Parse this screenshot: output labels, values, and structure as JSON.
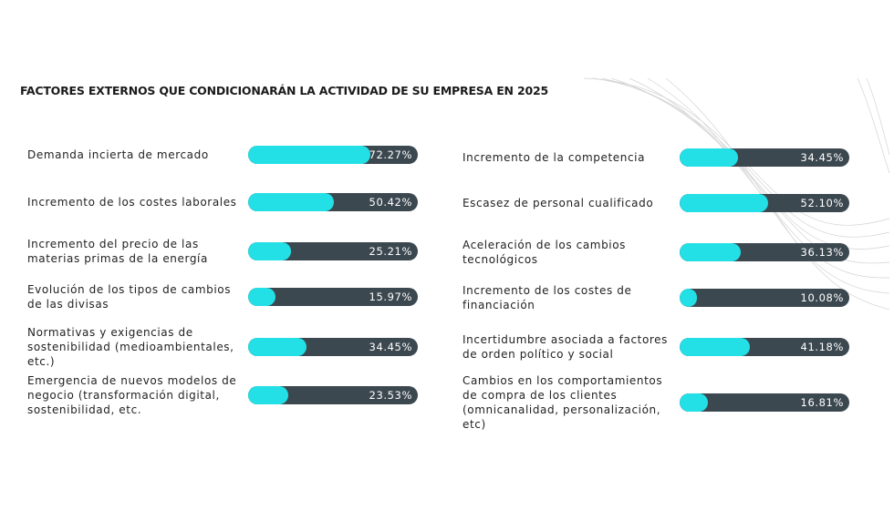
{
  "chart_data": [
    {
      "type": "bar",
      "orientation": "horizontal",
      "title": "FACTORES EXTERNOS QUE CONDICIONARÁN LA ACTIVIDAD DE SU EMPRESA EN 2025",
      "categories": [
        "Demanda incierta de mercado",
        "Incremento de los costes laborales",
        "Incremento del precio de las materias primas de la energía",
        "Evolución de los tipos de cambios de las divisas",
        "Normativas y exigencias de sostenibilidad (medioambientales, etc.)",
        "Emergencia de nuevos modelos de negocio (transformación digital, sostenibilidad, etc."
      ],
      "values": [
        72.27,
        50.42,
        25.21,
        15.97,
        34.45,
        23.53
      ],
      "value_labels": [
        "72.27%",
        "50.42%",
        "25.21%",
        "15.97%",
        "34.45%",
        "23.53%"
      ],
      "xlim": [
        0,
        100
      ],
      "color": "#22e0e6",
      "track_color": "#3c4850"
    },
    {
      "type": "bar",
      "orientation": "horizontal",
      "categories": [
        "Incremento de la competencia",
        "Escasez de personal cualificado",
        "Aceleración de los cambios tecnológicos",
        "Incremento de los costes de financiación",
        "Incertidumbre asociada a factores de orden político y social",
        "Cambios en los comportamientos de compra de los clientes (omnicanalidad, personalización, etc)"
      ],
      "values": [
        34.45,
        52.1,
        36.13,
        10.08,
        41.18,
        16.81
      ],
      "value_labels": [
        "34.45%",
        "52.10%",
        "36.13%",
        "10.08%",
        "41.18%",
        "16.81%"
      ],
      "xlim": [
        0,
        100
      ],
      "color": "#22e0e6",
      "track_color": "#3c4850"
    }
  ]
}
